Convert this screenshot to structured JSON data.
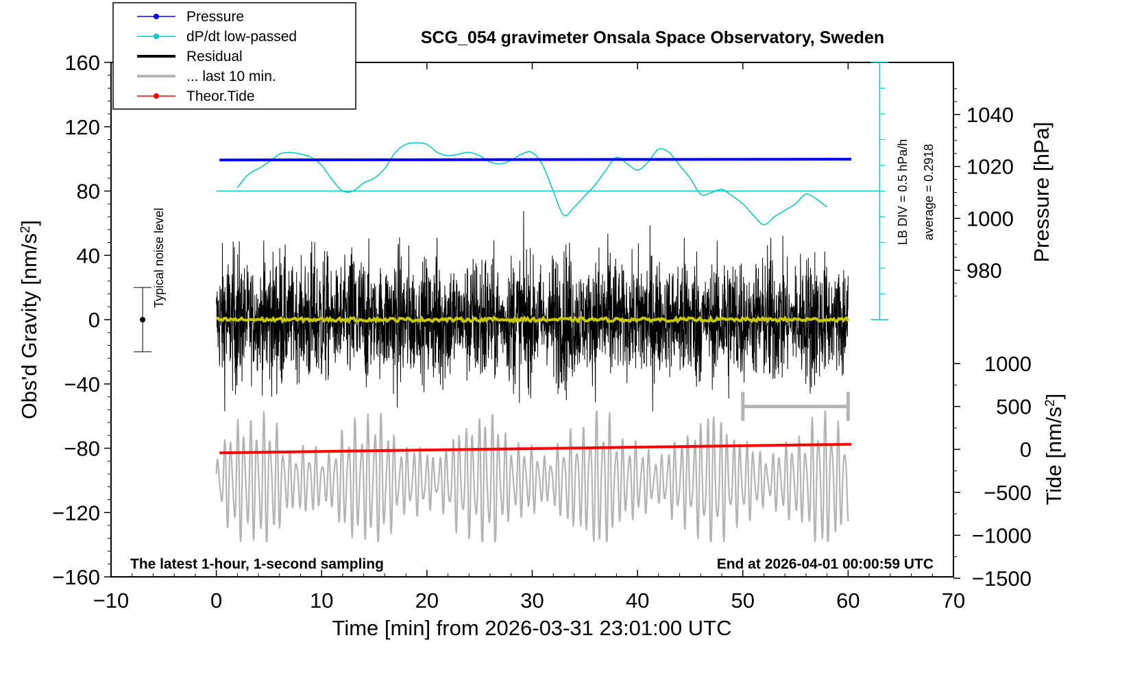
{
  "chart_data": {
    "type": "line",
    "title": "SCG_054 gravimeter Onsala Space Observatory, Sweden",
    "xlabel": "Time [min] from 2026-03-31 23:01:00 UTC",
    "ylabel_left": "Obs'd Gravity [nm/s",
    "ylabel_left_sup": "2",
    "ylabel_left_close": "]",
    "ylabel_right_pressure": "Pressure [hPa]",
    "ylabel_right_tide": "Tide [nm/s",
    "ylabel_right_tide_sup": "2",
    "ylabel_right_tide_close": "]",
    "xlim": [
      -10,
      70
    ],
    "ylim_left": [
      -160,
      160
    ],
    "xticks": [
      "−10",
      "0",
      "10",
      "20",
      "30",
      "40",
      "50",
      "60",
      "70"
    ],
    "xtick_values": [
      -10,
      0,
      10,
      20,
      30,
      40,
      50,
      60,
      70
    ],
    "yticks_left": [
      "160",
      "120",
      "80",
      "40",
      "0",
      "−40",
      "−80",
      "−120",
      "−160"
    ],
    "ytick_values_left": [
      160,
      120,
      80,
      40,
      0,
      -40,
      -80,
      -120,
      -160
    ],
    "pressure_axis": {
      "ticks": [
        "1040",
        "1020",
        "1000",
        "980"
      ],
      "values": [
        1040,
        1020,
        1000,
        980
      ],
      "range": [
        960,
        1060
      ]
    },
    "tide_axis": {
      "ticks": [
        "1000",
        "500",
        "0",
        "−500",
        "−1000",
        "−1500"
      ],
      "values": [
        1000,
        500,
        0,
        -500,
        -1000,
        -1500
      ],
      "range": [
        -1500,
        1000
      ]
    },
    "legend": [
      {
        "label": "Pressure",
        "color": "#0000ff",
        "marker": true
      },
      {
        "label": "dP/dt low-passed",
        "color": "#00c8c8",
        "marker": true
      },
      {
        "label": "Residual",
        "color": "#000000",
        "marker": false
      },
      {
        "label": "... last 10 min.",
        "color": "#b4b4b4",
        "marker": false
      },
      {
        "label": "Theor.Tide",
        "color": "#ff0000",
        "marker": true
      }
    ],
    "series": [
      {
        "name": "Pressure",
        "color": "#0000ff",
        "axis": "pressure",
        "x": [
          0.3,
          60.3
        ],
        "values": [
          1022.5,
          1022.8
        ]
      },
      {
        "name": "dP/dt low-passed",
        "color": "#00c8c8",
        "axis": "gravity",
        "x": [
          2,
          3,
          4,
          5,
          6,
          7,
          8,
          9,
          10,
          11,
          12,
          13,
          14,
          15,
          16,
          17,
          18,
          19,
          20,
          21,
          22,
          23,
          24,
          25,
          26,
          27,
          28,
          29,
          30,
          31,
          32,
          33,
          34,
          35,
          36,
          37,
          38,
          39,
          40,
          41,
          42,
          43,
          44,
          45,
          46,
          47,
          48,
          49,
          50,
          51,
          52,
          53,
          54,
          55,
          56,
          57,
          58
        ],
        "values": [
          82,
          90,
          94,
          98,
          103,
          104,
          103,
          101,
          96,
          87,
          80,
          80,
          85,
          88,
          94,
          104,
          109,
          110,
          109,
          104,
          102,
          103,
          104,
          102,
          98,
          97,
          99,
          103,
          104,
          96,
          80,
          65,
          70,
          77,
          84,
          93,
          101,
          97,
          93,
          98,
          106,
          104,
          96,
          88,
          78,
          79,
          81,
          77,
          72,
          65,
          59,
          64,
          68,
          72,
          78,
          75,
          70
        ]
      },
      {
        "name": "Residual",
        "color": "#000000",
        "axis": "gravity",
        "x_range": [
          0,
          60
        ],
        "typical_amplitude": 25,
        "extremes": [
          68,
          -57
        ]
      },
      {
        "name": "Residual smoothed",
        "color": "#c8c800",
        "axis": "gravity",
        "x_range": [
          0,
          60
        ],
        "level": 0
      },
      {
        "name": "... last 10 min.",
        "color": "#b4b4b4",
        "axis": "gravity",
        "x_range": [
          0,
          60
        ],
        "center": -100,
        "extremes": [
          -57,
          -138
        ]
      },
      {
        "name": "Theor.Tide",
        "color": "#ff0000",
        "axis": "tide",
        "x": [
          0.3,
          60.3
        ],
        "values": [
          -40,
          60
        ]
      }
    ],
    "pressure_scale_bar": {
      "label": "LB DIV = 0.5 hPa/h",
      "average_label": "average = 0.2918",
      "x": 63,
      "y_range": [
        0,
        160
      ],
      "reference_level": 80
    },
    "noise_bar": {
      "label": "Typical noise level",
      "x": -7,
      "center": 0,
      "range": [
        -20,
        20
      ]
    },
    "time_window_bar": {
      "x_range": [
        50,
        60
      ],
      "y": -54
    },
    "annotation_left": "The latest 1-hour, 1-second sampling",
    "annotation_right": "End at 2026-04-01 00:00:59 UTC"
  }
}
